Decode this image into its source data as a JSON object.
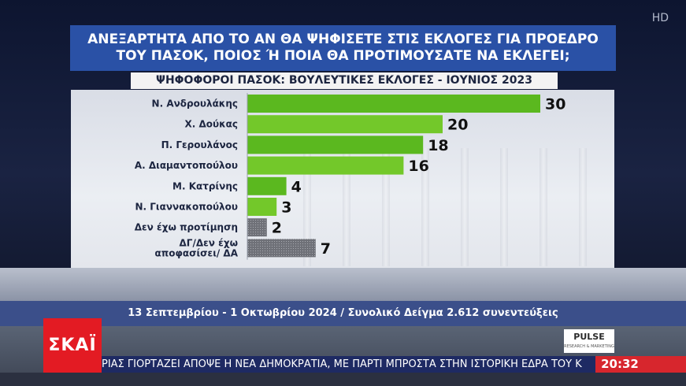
{
  "broadcast": {
    "hd_label": "HD",
    "channel_logo": "ΣΚΑΪ",
    "partner_logo": "PULSE",
    "partner_sub": "RESEARCH & MARKETING",
    "ticker_text": "ΡΙΑΣ ΓΙΟΡΤΑΖΕΙ ΑΠΟΨΕ Η ΝΕΑ ΔΗΜΟΚΡΑΤΙΑ, ΜΕ ΠΑΡΤΙ ΜΠΡΟΣΤΑ ΣΤΗΝ ΙΣΤΟΡΙΚΗ ΕΔΡΑ ΤΟΥ Κ",
    "clock": "20:32"
  },
  "poll": {
    "question_line1": "ΑΝΕΞΑΡΤΗΤΑ ΑΠΟ ΤΟ ΑΝ ΘΑ ΨΗΦΙΣΕΤΕ ΣΤΙΣ ΕΚΛΟΓΕΣ ΓΙΑ ΠΡΟΕΔΡΟ",
    "question_line2": "ΤΟΥ ΠΑΣΟΚ, ΠΟΙΟΣ Ή ΠΟΙΑ ΘΑ ΠΡΟΤΙΜΟΥΣΑΤΕ ΝΑ ΕΚΛΕΓΕΙ;",
    "subtitle": "ΨΗΦΟΦΟΡΟΙ ΠΑΣΟΚ: ΒΟΥΛΕΥΤΙΚΕΣ ΕΚΛΟΓΕΣ - ΙΟΥΝΙΟΣ 2023",
    "footnote": "13 Σεπτεμβρίου - 1 Οκτωβρίου 2024 / Συνολικό Δείγμα 2.612 συνεντεύξεις"
  },
  "chart_data": {
    "type": "bar",
    "orientation": "horizontal",
    "title": "ΨΗΦΟΦΟΡΟΙ ΠΑΣΟΚ: ΒΟΥΛΕΥΤΙΚΕΣ ΕΚΛΟΓΕΣ - ΙΟΥΝΙΟΣ 2023",
    "categories": [
      "Ν. Ανδρουλάκης",
      [
        "Χ. Δούκας"
      ],
      "Π. Γερουλάνος",
      "Α. Διαμαντοπούλου",
      "Μ. Κατρίνης",
      "Ν. Γιαννακοπούλου",
      "Δεν έχω προτίμηση",
      [
        "ΔΓ/Δεν έχω",
        "αποφασίσει/ ΔΑ"
      ]
    ],
    "values": [
      30,
      20,
      18,
      16,
      4,
      3,
      2,
      7
    ],
    "colors": [
      "#5bb81f",
      "#73c82a",
      "#5bb81f",
      "#73c82a",
      "#5bb81f",
      "#73c82a",
      "#7d7f86",
      "#7d7f86"
    ],
    "xlim": [
      0,
      30
    ],
    "grid": false,
    "legend": "none"
  }
}
